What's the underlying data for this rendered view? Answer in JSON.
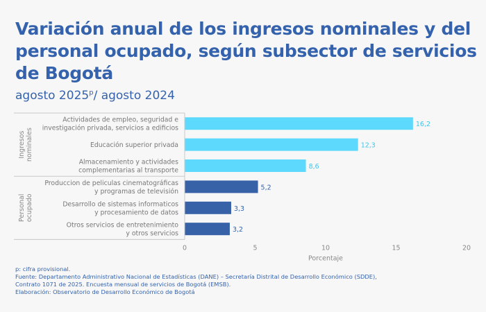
{
  "title": "Variación anual de los ingresos nominales y del personal ocupado, según subsector de servicios de Bogotá",
  "subtitle": {
    "text": "agosto 2025",
    "sup": "p",
    "rest": "/ agosto 2024"
  },
  "chart_data": {
    "type": "bar",
    "orientation": "horizontal",
    "xlabel": "Porcentaje",
    "xlim": [
      0,
      20
    ],
    "xticks": [
      "0",
      "5",
      "10",
      "15",
      "20"
    ],
    "groups": [
      {
        "name": "Ingresos nominales",
        "color": "#5dd9fd",
        "categories": [
          {
            "label": [
              "Actividades de empleo, seguridad e",
              "investigación privada, servicios a edificios"
            ],
            "value": 16.2,
            "value_label": "16,2"
          },
          {
            "label": [
              "Educación superior privada"
            ],
            "value": 12.3,
            "value_label": "12,3"
          },
          {
            "label": [
              "Almacenamiento y actividades",
              "complementarias al transporte"
            ],
            "value": 8.6,
            "value_label": "8,6"
          }
        ]
      },
      {
        "name": "Personal ocupado",
        "color": "#3862a8",
        "categories": [
          {
            "label": [
              "Produccion de peliculas cinematográficas",
              "y programas de televisión"
            ],
            "value": 5.2,
            "value_label": "5,2"
          },
          {
            "label": [
              "Desarrollo de sistemas informaticos",
              "y procesamiento de datos"
            ],
            "value": 3.3,
            "value_label": "3,3"
          },
          {
            "label": [
              "Otros servicios de entretenimiento",
              "y otros servicios"
            ],
            "value": 3.2,
            "value_label": "3,2"
          }
        ]
      }
    ]
  },
  "notes": [
    "p: cifra provisional.",
    "Fuente: Departamento Administrativo Nacional de Estadísticas (DANE) – Secretaría Distrital de Desarrollo Económico (SDDE),",
    "Contrato 1071 de 2025. Encuesta mensual de servicios de Bogotá (EMSB).",
    "Elaboración: Observatorio de Desarrollo Económico de Bogotá"
  ]
}
